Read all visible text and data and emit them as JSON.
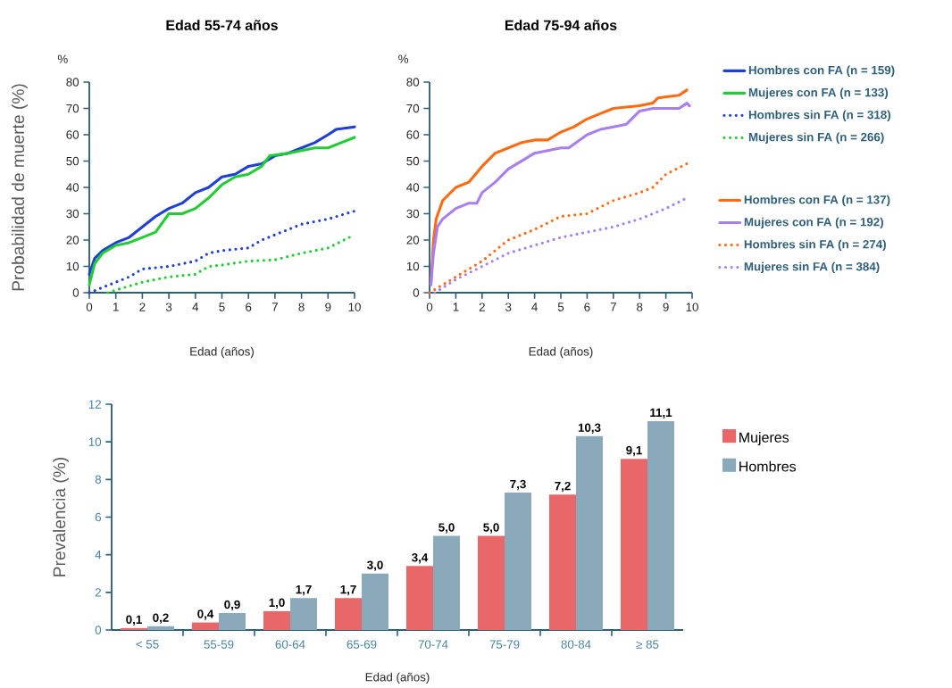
{
  "chart_data": [
    {
      "type": "line",
      "title": "Edad 55-74 años",
      "xlabel": "Edad (años)",
      "ylabel": "Probabilidad de muerte (%)",
      "annotations": [
        "%"
      ],
      "xlim": [
        0,
        10
      ],
      "ylim": [
        0,
        80
      ],
      "xticks": [
        0,
        1,
        2,
        3,
        4,
        5,
        6,
        7,
        8,
        9,
        10
      ],
      "yticks": [
        0,
        10,
        20,
        30,
        40,
        50,
        60,
        70,
        80
      ],
      "legend": "right",
      "series": [
        {
          "name": "Hombres con FA (n = 159)",
          "color": "#1f3fd6",
          "line_style": "solid",
          "x": [
            0,
            0.2,
            0.5,
            1,
            1.5,
            2,
            2.5,
            3,
            3.5,
            4,
            4.5,
            5,
            5.5,
            6,
            6.5,
            7,
            7.5,
            8,
            8.5,
            9,
            9.3,
            10
          ],
          "values": [
            7,
            13,
            16,
            19,
            21,
            25,
            29,
            32,
            34,
            38,
            40,
            44,
            45,
            48,
            49,
            52,
            53,
            55,
            57,
            60,
            62,
            63
          ]
        },
        {
          "name": "Mujeres con FA (n = 133)",
          "color": "#22cc33",
          "line_style": "solid",
          "x": [
            0,
            0.2,
            0.5,
            1,
            1.5,
            2,
            2.5,
            3,
            3.5,
            4,
            4.5,
            5,
            5.5,
            6,
            6.5,
            6.8,
            7.5,
            8,
            8.5,
            9,
            9.5,
            10
          ],
          "values": [
            3,
            11,
            15,
            18,
            19,
            21,
            23,
            30,
            30,
            32,
            36,
            41,
            44,
            45,
            48,
            52,
            53,
            54,
            55,
            55,
            57,
            59
          ]
        },
        {
          "name": "Hombres sin FA (n = 318)",
          "color": "#1f3fd6",
          "line_style": "dotted",
          "x": [
            0,
            0.5,
            1,
            1.5,
            2,
            3,
            4,
            4.5,
            5,
            6,
            6.5,
            7,
            8,
            9,
            10
          ],
          "values": [
            0,
            2,
            4,
            6,
            9,
            10,
            12,
            15,
            16,
            17,
            20,
            22,
            26,
            28,
            31
          ]
        },
        {
          "name": "Mujeres sin FA (n = 266)",
          "color": "#22cc33",
          "line_style": "dotted",
          "x": [
            0.7,
            1,
            2,
            3,
            4,
            4.5,
            5,
            6,
            7,
            8,
            9,
            10
          ],
          "values": [
            0,
            1,
            4,
            6,
            7,
            10,
            10.5,
            12,
            12.5,
            15,
            17,
            22
          ]
        }
      ]
    },
    {
      "type": "line",
      "title": "Edad 75-94 años",
      "xlabel": "Edad (años)",
      "annotations": [
        "%"
      ],
      "xlim": [
        0,
        10
      ],
      "ylim": [
        0,
        80
      ],
      "xticks": [
        0,
        1,
        2,
        3,
        4,
        5,
        6,
        7,
        8,
        9,
        10
      ],
      "yticks": [
        0,
        10,
        20,
        30,
        40,
        50,
        60,
        70,
        80
      ],
      "legend": "right",
      "series": [
        {
          "name": "Hombres con FA (n = 137)",
          "color": "#ff6a10",
          "line_style": "solid",
          "x": [
            0.05,
            0.15,
            0.25,
            0.5,
            1,
            1.5,
            2,
            2.5,
            3,
            3.5,
            4,
            4.5,
            5,
            5.5,
            6,
            6.5,
            7,
            8,
            8.5,
            8.7,
            9.5,
            9.8
          ],
          "values": [
            3,
            20,
            28,
            35,
            40,
            42,
            48,
            53,
            55,
            57,
            58,
            58,
            61,
            63,
            66,
            68,
            70,
            71,
            72,
            74,
            75,
            77
          ]
        },
        {
          "name": "Mujeres con FA (n = 192)",
          "color": "#a77ff0",
          "line_style": "solid",
          "x": [
            0.05,
            0.15,
            0.3,
            0.5,
            1,
            1.5,
            1.8,
            2,
            2.5,
            3,
            3.5,
            4,
            4.5,
            5,
            5.3,
            6,
            6.5,
            7,
            7.5,
            8,
            8.5,
            9.5,
            9.8,
            9.9
          ],
          "values": [
            3,
            15,
            25,
            28,
            32,
            34,
            34,
            38,
            42,
            47,
            50,
            53,
            54,
            55,
            55,
            60,
            62,
            63,
            64,
            69,
            70,
            70,
            72,
            71
          ]
        },
        {
          "name": "Hombres sin FA (n = 274)",
          "color": "#ff6a10",
          "line_style": "dotted",
          "x": [
            0,
            0.5,
            1,
            2,
            3,
            4,
            5,
            6,
            7,
            8,
            8.5,
            9,
            9.8
          ],
          "values": [
            0,
            3,
            6,
            12,
            20,
            24,
            29,
            30,
            35,
            38,
            40,
            45,
            49
          ]
        },
        {
          "name": "Mujeres sin FA (n = 384)",
          "color": "#a77ff0",
          "line_style": "dotted",
          "x": [
            0.2,
            1,
            2,
            3,
            4,
            5,
            6,
            7,
            8,
            9,
            9.8
          ],
          "values": [
            0,
            5,
            10,
            15,
            18,
            21,
            23,
            25,
            28,
            32,
            36
          ]
        }
      ]
    },
    {
      "type": "bar",
      "xlabel": "Edad (años)",
      "ylabel": "Prevalencia (%)",
      "categories": [
        "< 55",
        "55-59",
        "60-64",
        "65-69",
        "70-74",
        "75-79",
        "80-84",
        "≥ 85"
      ],
      "ylim": [
        0,
        12
      ],
      "yticks": [
        0,
        2,
        4,
        6,
        8,
        10,
        12
      ],
      "legend": "right",
      "series": [
        {
          "name": "Mujeres",
          "color": "#e8686a",
          "values": [
            0.1,
            0.4,
            1.0,
            1.7,
            3.4,
            5.0,
            7.2,
            9.1
          ],
          "value_labels": [
            "0,1",
            "0,4",
            "1,0",
            "1,7",
            "3,4",
            "5,0",
            "7,2",
            "9,1"
          ]
        },
        {
          "name": "Hombres",
          "color": "#8aaabb",
          "values": [
            0.2,
            0.9,
            1.7,
            3.0,
            5.0,
            7.3,
            10.3,
            11.1
          ],
          "value_labels": [
            "0,2",
            "0,9",
            "1,7",
            "3,0",
            "5,0",
            "7,3",
            "10,3",
            "11,1"
          ]
        }
      ]
    }
  ]
}
